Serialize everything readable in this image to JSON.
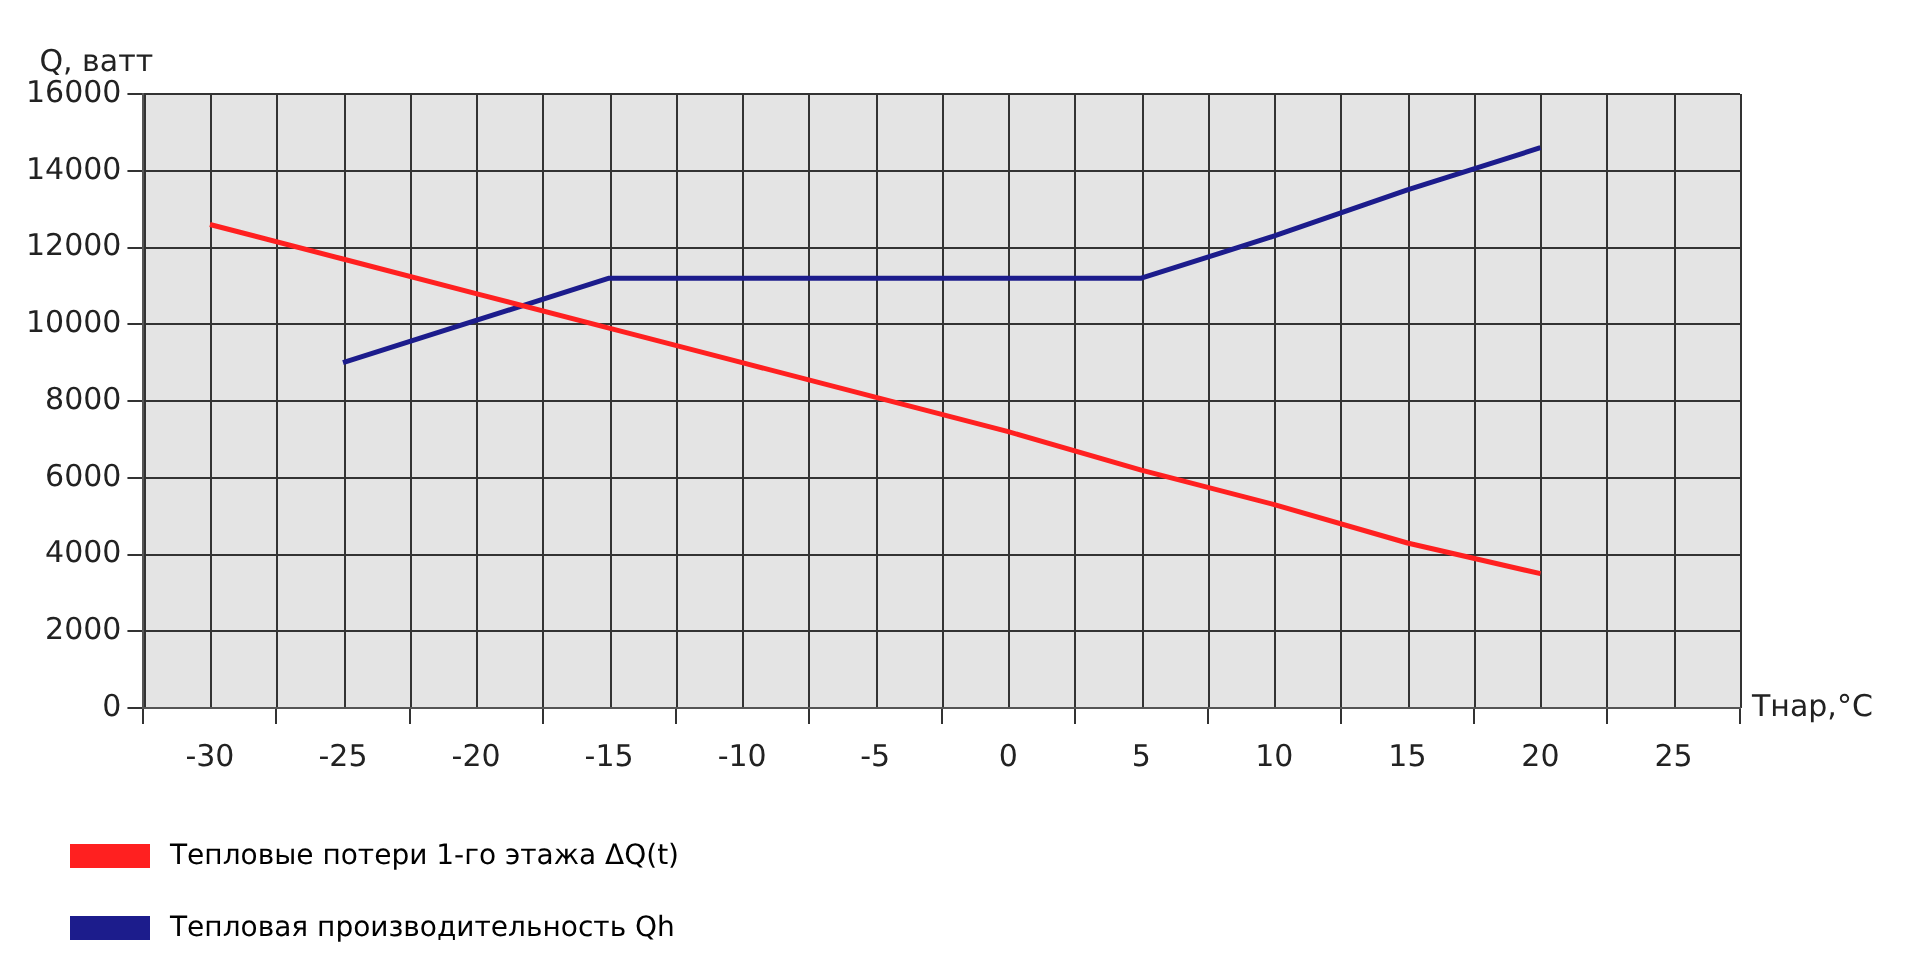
{
  "chart_data": {
    "type": "line",
    "ylabel": "Q, ватт",
    "xlabel": "Тнар,°C",
    "categories": [
      "-30",
      "-25",
      "-20",
      "-15",
      "-10",
      "-5",
      "0",
      "5",
      "10",
      "15",
      "20",
      "25"
    ],
    "series": [
      {
        "name": "Тепловые потери 1-го этажа ΔQ(t)",
        "color": "#ff2020",
        "values": [
          12600,
          11700,
          10800,
          9900,
          9000,
          8100,
          7200,
          6200,
          5300,
          4300,
          3500,
          null
        ]
      },
      {
        "name": "Тепловая производительность Qh",
        "color": "#1c1c8c",
        "values": [
          null,
          9000,
          10100,
          11200,
          11200,
          11200,
          11200,
          11200,
          12300,
          13500,
          14600,
          null
        ]
      }
    ],
    "ylim": [
      0,
      16000
    ],
    "yticks": [
      0,
      2000,
      4000,
      6000,
      8000,
      10000,
      12000,
      14000,
      16000
    ],
    "grid": true,
    "legend": "bottom left",
    "marker": "none",
    "line_style": "solid"
  }
}
